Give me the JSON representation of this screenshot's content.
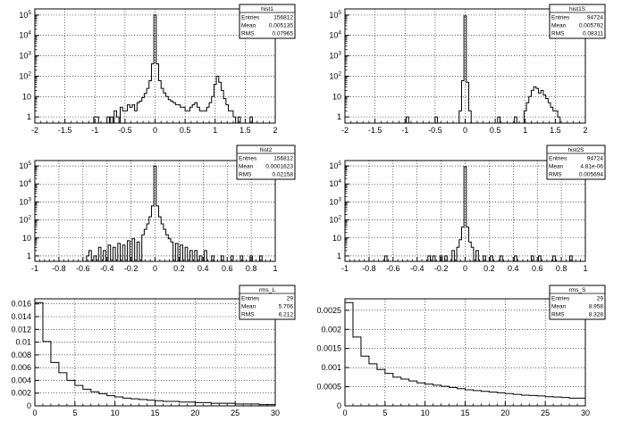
{
  "chart_data": [
    {
      "id": "p1",
      "type": "histogram",
      "stats": {
        "name": "hist1",
        "rows": [
          [
            "Entries",
            "156812"
          ],
          [
            "Mean",
            "0.005135"
          ],
          [
            "RMS",
            "0.07965"
          ]
        ]
      },
      "xlim": [
        -2,
        2
      ],
      "log_y": true,
      "ylim": [
        0.5,
        200000
      ],
      "x_ticks": [
        "-2",
        "-1.5",
        "-1",
        "-0.5",
        "0",
        "0.5",
        "1",
        "1.5",
        "2"
      ],
      "x_tick_values": [
        -2,
        -1.5,
        -1,
        -0.5,
        0,
        0.5,
        1,
        1.5,
        2
      ],
      "y_ticks": [
        "1",
        "10",
        "10^2",
        "10^3",
        "10^4",
        "10^5"
      ],
      "y_tick_values": [
        1,
        10,
        100,
        1000,
        10000,
        100000
      ],
      "grid": true,
      "bins": [
        [
          -1.0,
          1
        ],
        [
          -0.96,
          1
        ],
        [
          -0.78,
          1
        ],
        [
          -0.72,
          1
        ],
        [
          -0.66,
          2
        ],
        [
          -0.62,
          1
        ],
        [
          -0.56,
          3
        ],
        [
          -0.52,
          2
        ],
        [
          -0.48,
          2
        ],
        [
          -0.44,
          4
        ],
        [
          -0.4,
          3
        ],
        [
          -0.36,
          4
        ],
        [
          -0.32,
          2
        ],
        [
          -0.28,
          5
        ],
        [
          -0.24,
          6
        ],
        [
          -0.2,
          9
        ],
        [
          -0.16,
          14
        ],
        [
          -0.12,
          25
        ],
        [
          -0.08,
          60
        ],
        [
          -0.04,
          400
        ],
        [
          0.0,
          100000
        ],
        [
          0.04,
          400
        ],
        [
          0.08,
          60
        ],
        [
          0.12,
          25
        ],
        [
          0.16,
          15
        ],
        [
          0.2,
          10
        ],
        [
          0.24,
          7
        ],
        [
          0.28,
          6
        ],
        [
          0.32,
          5
        ],
        [
          0.36,
          4
        ],
        [
          0.4,
          4
        ],
        [
          0.44,
          3
        ],
        [
          0.48,
          3
        ],
        [
          0.52,
          2
        ],
        [
          0.56,
          2
        ],
        [
          0.6,
          3
        ],
        [
          0.64,
          4
        ],
        [
          0.68,
          5
        ],
        [
          0.72,
          3
        ],
        [
          0.76,
          2
        ],
        [
          0.8,
          2
        ],
        [
          0.84,
          2
        ],
        [
          0.88,
          3
        ],
        [
          0.92,
          5
        ],
        [
          0.96,
          10
        ],
        [
          1.0,
          40
        ],
        [
          1.04,
          100
        ],
        [
          1.08,
          50
        ],
        [
          1.12,
          20
        ],
        [
          1.16,
          8
        ],
        [
          1.2,
          4
        ],
        [
          1.24,
          2
        ],
        [
          1.28,
          2
        ],
        [
          1.32,
          1
        ],
        [
          1.4,
          1
        ],
        [
          1.6,
          1
        ]
      ]
    },
    {
      "id": "p2",
      "type": "histogram",
      "stats": {
        "name": "hist1S",
        "rows": [
          [
            "Entries",
            "94724"
          ],
          [
            "Mean",
            "0.005792"
          ],
          [
            "RMS",
            "0.08311"
          ]
        ]
      },
      "xlim": [
        -2,
        2
      ],
      "log_y": true,
      "ylim": [
        0.5,
        200000
      ],
      "x_ticks": [
        "-2",
        "-1.5",
        "-1",
        "-0.5",
        "0",
        "0.5",
        "1",
        "1.5",
        "2"
      ],
      "x_tick_values": [
        -2,
        -1.5,
        -1,
        -0.5,
        0,
        0.5,
        1,
        1.5,
        2
      ],
      "y_ticks": [
        "1",
        "10",
        "10^2",
        "10^3",
        "10^4",
        "10^5"
      ],
      "y_tick_values": [
        1,
        10,
        100,
        1000,
        10000,
        100000
      ],
      "grid": true,
      "bins": [
        [
          -0.96,
          1
        ],
        [
          -0.48,
          1
        ],
        [
          -0.08,
          2
        ],
        [
          -0.04,
          60
        ],
        [
          0.0,
          90000
        ],
        [
          0.04,
          50
        ],
        [
          0.08,
          2
        ],
        [
          0.56,
          1
        ],
        [
          0.84,
          1
        ],
        [
          1.0,
          2
        ],
        [
          1.04,
          5
        ],
        [
          1.08,
          10
        ],
        [
          1.12,
          20
        ],
        [
          1.16,
          30
        ],
        [
          1.2,
          25
        ],
        [
          1.24,
          15
        ],
        [
          1.28,
          20
        ],
        [
          1.32,
          12
        ],
        [
          1.36,
          8
        ],
        [
          1.4,
          5
        ],
        [
          1.44,
          3
        ],
        [
          1.48,
          2
        ],
        [
          1.52,
          2
        ],
        [
          1.56,
          1
        ]
      ]
    },
    {
      "id": "p3",
      "type": "histogram",
      "stats": {
        "name": "hist2",
        "rows": [
          [
            "Entries",
            "156812"
          ],
          [
            "Mean",
            "0.0001623"
          ],
          [
            "RMS",
            "0.02158"
          ]
        ]
      },
      "xlim": [
        -1,
        1
      ],
      "log_y": true,
      "ylim": [
        0.5,
        200000
      ],
      "x_ticks": [
        "-1",
        "-0.8",
        "-0.6",
        "-0.4",
        "-0.2",
        "0",
        "0.2",
        "0.4",
        "0.6",
        "0.8",
        "1"
      ],
      "x_tick_values": [
        -1,
        -0.8,
        -0.6,
        -0.4,
        -0.2,
        0,
        0.2,
        0.4,
        0.6,
        0.8,
        1
      ],
      "y_ticks": [
        "1",
        "10",
        "10^2",
        "10^3",
        "10^4",
        "10^5"
      ],
      "y_tick_values": [
        1,
        10,
        100,
        1000,
        10000,
        100000
      ],
      "grid": true,
      "bins": [
        [
          -0.56,
          1
        ],
        [
          -0.54,
          2
        ],
        [
          -0.5,
          1
        ],
        [
          -0.46,
          3
        ],
        [
          -0.42,
          2
        ],
        [
          -0.38,
          4
        ],
        [
          -0.34,
          3
        ],
        [
          -0.3,
          5
        ],
        [
          -0.26,
          4
        ],
        [
          -0.22,
          7
        ],
        [
          -0.18,
          9
        ],
        [
          -0.14,
          6
        ],
        [
          -0.1,
          15
        ],
        [
          -0.08,
          30
        ],
        [
          -0.06,
          60
        ],
        [
          -0.04,
          150
        ],
        [
          -0.02,
          600
        ],
        [
          0.0,
          100000
        ],
        [
          0.02,
          600
        ],
        [
          0.04,
          150
        ],
        [
          0.06,
          60
        ],
        [
          0.08,
          30
        ],
        [
          0.1,
          15
        ],
        [
          0.12,
          9
        ],
        [
          0.14,
          6
        ],
        [
          0.18,
          5
        ],
        [
          0.22,
          4
        ],
        [
          0.26,
          3
        ],
        [
          0.3,
          2
        ],
        [
          0.34,
          2
        ],
        [
          0.38,
          1
        ],
        [
          0.42,
          2
        ],
        [
          0.48,
          1
        ],
        [
          0.56,
          1
        ],
        [
          0.64,
          1
        ],
        [
          0.72,
          1
        ],
        [
          0.8,
          1
        ],
        [
          0.88,
          1
        ]
      ]
    },
    {
      "id": "p4",
      "type": "histogram",
      "stats": {
        "name": "hist2S",
        "rows": [
          [
            "Entries",
            "94724"
          ],
          [
            "Mean",
            "4.81e-06"
          ],
          [
            "RMS",
            "0.005694"
          ]
        ]
      },
      "xlim": [
        -1,
        1
      ],
      "log_y": true,
      "ylim": [
        0.5,
        200000
      ],
      "x_ticks": [
        "-1",
        "-0.8",
        "-0.6",
        "-0.4",
        "-0.2",
        "0",
        "0.2",
        "0.4",
        "0.6",
        "0.8",
        "1"
      ],
      "x_tick_values": [
        -1,
        -0.8,
        -0.6,
        -0.4,
        -0.2,
        0,
        0.2,
        0.4,
        0.6,
        0.8,
        1
      ],
      "y_ticks": [
        "1",
        "10",
        "10^2",
        "10^3",
        "10^4",
        "10^5"
      ],
      "y_tick_values": [
        1,
        10,
        100,
        1000,
        10000,
        100000
      ],
      "grid": true,
      "bins": [
        [
          -0.66,
          1
        ],
        [
          -0.3,
          1
        ],
        [
          -0.26,
          1
        ],
        [
          -0.2,
          1
        ],
        [
          -0.16,
          1
        ],
        [
          -0.1,
          2
        ],
        [
          -0.06,
          3
        ],
        [
          -0.04,
          8
        ],
        [
          -0.02,
          40
        ],
        [
          0.0,
          90000
        ],
        [
          0.02,
          40
        ],
        [
          0.04,
          6
        ],
        [
          0.06,
          3
        ],
        [
          0.1,
          2
        ],
        [
          0.16,
          1
        ],
        [
          0.22,
          1
        ],
        [
          0.3,
          1
        ],
        [
          0.42,
          1
        ],
        [
          0.56,
          1
        ],
        [
          0.62,
          1
        ],
        [
          0.74,
          1
        ],
        [
          0.88,
          1
        ]
      ]
    },
    {
      "id": "p5",
      "type": "histogram",
      "stats": {
        "name": "rms_L",
        "rows": [
          [
            "Entries",
            "29"
          ],
          [
            "Mean",
            "5.706"
          ],
          [
            "RMS",
            "6.212"
          ]
        ]
      },
      "xlim": [
        0,
        30
      ],
      "log_y": false,
      "ylim": [
        0,
        0.0168
      ],
      "x_ticks": [
        "0",
        "5",
        "10",
        "15",
        "20",
        "25",
        "30"
      ],
      "x_tick_values": [
        0,
        5,
        10,
        15,
        20,
        25,
        30
      ],
      "y_ticks": [
        "0",
        "0.002",
        "0.004",
        "0.006",
        "0.008",
        "0.01",
        "0.012",
        "0.014",
        "0.016"
      ],
      "y_tick_values": [
        0,
        0.002,
        0.004,
        0.006,
        0.008,
        0.01,
        0.012,
        0.014,
        0.016
      ],
      "grid": true,
      "bin_width": 1,
      "values": [
        0.0162,
        0.0101,
        0.0068,
        0.0052,
        0.004,
        0.0032,
        0.0026,
        0.0022,
        0.0019,
        0.0016,
        0.0014,
        0.0012,
        0.0011,
        0.001,
        0.0009,
        0.0008,
        0.0007,
        0.0007,
        0.0006,
        0.0006,
        0.0005,
        0.0005,
        0.0004,
        0.0004,
        0.0004,
        0.0003,
        0.0003,
        0.0003,
        0.0002,
        0.0002
      ]
    },
    {
      "id": "p6",
      "type": "histogram",
      "stats": {
        "name": "rms_S",
        "rows": [
          [
            "Entries",
            "29"
          ],
          [
            "Mean",
            "8.958"
          ],
          [
            "RMS",
            "8.328"
          ]
        ]
      },
      "xlim": [
        0,
        30
      ],
      "log_y": false,
      "ylim": [
        0,
        0.0028
      ],
      "x_ticks": [
        "0",
        "5",
        "10",
        "15",
        "20",
        "25",
        "30"
      ],
      "x_tick_values": [
        0,
        5,
        10,
        15,
        20,
        25,
        30
      ],
      "y_ticks": [
        "0",
        "0.0005",
        "0.001",
        "0.0015",
        "0.002",
        "0.0025"
      ],
      "y_tick_values": [
        0,
        0.0005,
        0.001,
        0.0015,
        0.002,
        0.0025
      ],
      "grid": true,
      "bin_width": 1,
      "values": [
        0.0027,
        0.0018,
        0.0013,
        0.0011,
        0.00095,
        0.00085,
        0.00075,
        0.0007,
        0.00065,
        0.0006,
        0.00057,
        0.00054,
        0.00051,
        0.00048,
        0.00045,
        0.00042,
        0.0004,
        0.00038,
        0.00036,
        0.00034,
        0.00032,
        0.0003,
        0.00028,
        0.00027,
        0.00026,
        0.00024,
        0.00023,
        0.00022,
        0.0002,
        0.0002
      ]
    }
  ]
}
